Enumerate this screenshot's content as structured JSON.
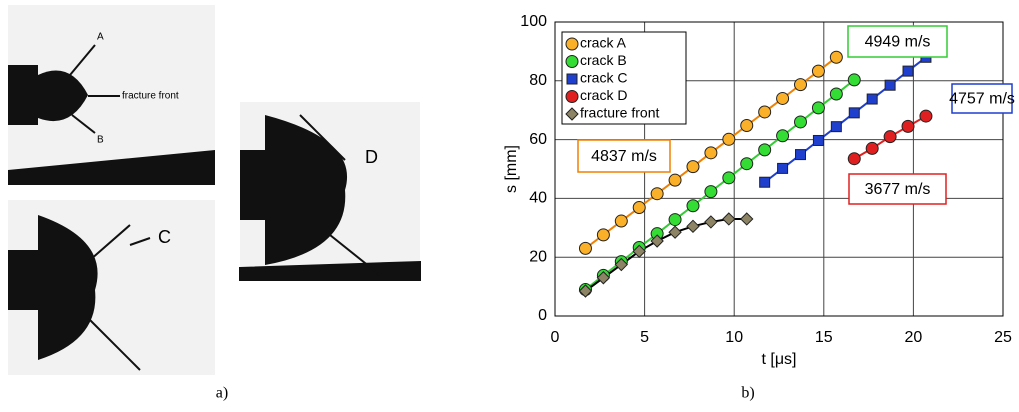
{
  "figure": {
    "photo_labels": [
      "A",
      "fracture front",
      "B",
      "C",
      "D"
    ],
    "captions": [
      "a)",
      "b)"
    ]
  },
  "chart_data": {
    "type": "scatter",
    "xlabel": "t [μs]",
    "ylabel": "s [mm]",
    "xlim": [
      0,
      25
    ],
    "ylim": [
      0,
      100
    ],
    "xticks": [
      0,
      5,
      10,
      15,
      20,
      25
    ],
    "yticks": [
      0,
      20,
      40,
      60,
      80,
      100
    ],
    "grid": true,
    "legend": "upper left",
    "series": [
      {
        "name": "crack A",
        "color": "#fbb02a",
        "line_color": "#f08000",
        "marker": "circle",
        "x": [
          1.7,
          2.7,
          3.7,
          4.7,
          5.7,
          6.7,
          7.7,
          8.7,
          9.7,
          10.7,
          11.7,
          12.7,
          13.7,
          14.7,
          15.7
        ],
        "values": [
          23,
          27.6,
          32.3,
          36.9,
          41.6,
          46.2,
          50.8,
          55.5,
          60.1,
          64.8,
          69.4,
          74,
          78.7,
          83.3,
          88
        ]
      },
      {
        "name": "crack B",
        "color": "#33dd33",
        "line_color": "#33cc33",
        "marker": "circle",
        "x": [
          1.7,
          2.7,
          3.7,
          4.7,
          5.7,
          6.7,
          7.7,
          8.7,
          9.7,
          10.7,
          11.7,
          12.7,
          13.7,
          14.7,
          15.7,
          16.7
        ],
        "values": [
          9,
          13.8,
          18.5,
          23.3,
          28,
          32.8,
          37.5,
          42.3,
          47,
          51.8,
          56.5,
          61.3,
          66,
          70.8,
          75.5,
          80.3
        ]
      },
      {
        "name": "crack C",
        "color": "#1f3fcf",
        "line_color": "#1f3fcf",
        "marker": "square",
        "x": [
          11.7,
          12.7,
          13.7,
          14.7,
          15.7,
          16.7,
          17.7,
          18.7,
          19.7,
          20.7
        ],
        "values": [
          45.5,
          50.2,
          54.9,
          59.7,
          64.4,
          69.1,
          73.8,
          78.5,
          83.3,
          88
        ]
      },
      {
        "name": "crack D",
        "color": "#e02020",
        "line_color": "#e02020",
        "marker": "circle",
        "x": [
          16.7,
          17.7,
          18.7,
          19.7,
          20.7
        ],
        "values": [
          53.5,
          57,
          61,
          64.5,
          68
        ]
      },
      {
        "name": "fracture front",
        "color": "#8c8464",
        "line_color": "#000000",
        "marker": "diamond",
        "x": [
          1.7,
          2.7,
          3.7,
          4.7,
          5.7,
          6.7,
          7.7,
          8.7,
          9.7,
          10.7
        ],
        "values": [
          8.5,
          13,
          17.5,
          22,
          25.5,
          28.5,
          30.5,
          32,
          33,
          33
        ]
      }
    ],
    "annotations": [
      {
        "text": "4837 m/s",
        "color": "#f08000"
      },
      {
        "text": "4949 m/s",
        "color": "#33cc33"
      },
      {
        "text": "4757 m/s",
        "color": "#1f3fcf"
      },
      {
        "text": "3677 m/s",
        "color": "#e02020"
      }
    ]
  }
}
